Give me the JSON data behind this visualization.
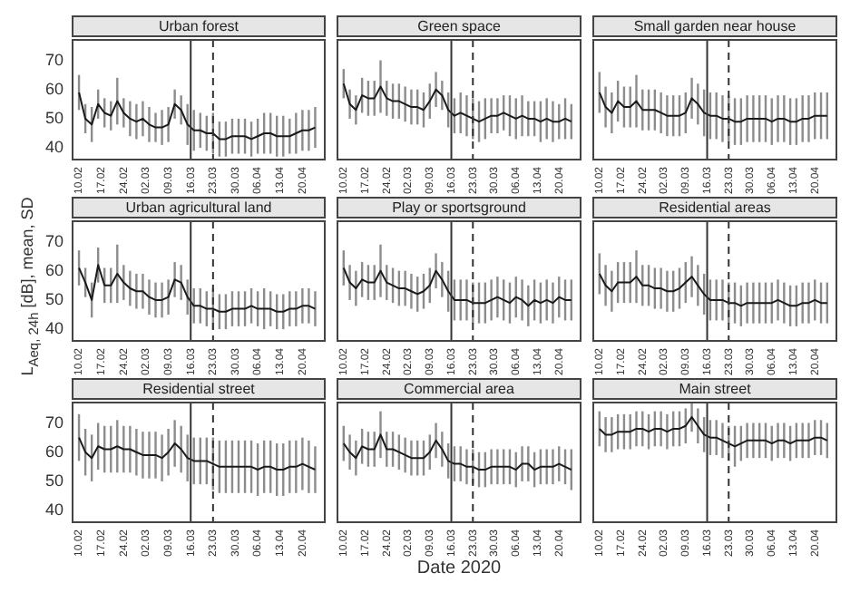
{
  "chart_data": [
    {
      "type": "line",
      "title": "Urban forest",
      "x": [
        "2020-02-10",
        "2020-02-12",
        "2020-02-14",
        "2020-02-16",
        "2020-02-18",
        "2020-02-20",
        "2020-02-22",
        "2020-02-24",
        "2020-02-26",
        "2020-02-28",
        "2020-03-01",
        "2020-03-03",
        "2020-03-05",
        "2020-03-07",
        "2020-03-09",
        "2020-03-11",
        "2020-03-13",
        "2020-03-15",
        "2020-03-17",
        "2020-03-19",
        "2020-03-21",
        "2020-03-23",
        "2020-03-25",
        "2020-03-27",
        "2020-03-29",
        "2020-03-31",
        "2020-04-02",
        "2020-04-04",
        "2020-04-06",
        "2020-04-08",
        "2020-04-10",
        "2020-04-12",
        "2020-04-14",
        "2020-04-16",
        "2020-04-18",
        "2020-04-20",
        "2020-04-22",
        "2020-04-24"
      ],
      "series": [
        {
          "color": "#1a1a1a",
          "values": [
            59,
            50,
            48,
            55,
            52,
            51,
            56,
            52,
            50,
            49,
            50,
            48,
            47,
            47,
            48,
            55,
            53,
            48,
            46,
            46,
            45,
            45,
            43,
            43,
            44,
            44,
            44,
            43,
            44,
            45,
            45,
            44,
            44,
            44,
            45,
            46,
            46,
            47
          ],
          "errors": [
            6,
            5,
            6,
            5,
            5,
            5,
            8,
            5,
            6,
            6,
            6,
            6,
            5,
            6,
            6,
            5,
            5,
            7,
            7,
            6,
            6,
            7,
            6,
            6,
            6,
            6,
            6,
            6,
            6,
            7,
            7,
            7,
            7,
            6,
            7,
            7,
            7,
            7
          ]
        }
      ],
      "xlim": [
        "2020-02-08",
        "2020-04-27"
      ],
      "xticks": [
        {
          "value": "2020-02-10",
          "label": "10.02"
        },
        {
          "value": "2020-02-17",
          "label": "17.02"
        },
        {
          "value": "2020-02-24",
          "label": "24.02"
        },
        {
          "value": "2020-03-02",
          "label": "02.03"
        },
        {
          "value": "2020-03-09",
          "label": "09.03"
        },
        {
          "value": "2020-03-16",
          "label": "16.03"
        },
        {
          "value": "2020-03-23",
          "label": "23.03"
        },
        {
          "value": "2020-03-30",
          "label": "30.03"
        },
        {
          "value": "2020-04-06",
          "label": "06.04"
        },
        {
          "value": "2020-04-13",
          "label": "13.04"
        },
        {
          "value": "2020-04-20",
          "label": "20.04"
        }
      ],
      "ylim": [
        36,
        77
      ],
      "yticks": [
        40,
        50,
        60,
        70
      ],
      "ref_lines": [
        {
          "axis": "x",
          "value": "2020-03-16",
          "color": "#333333",
          "line_style": "solid"
        },
        {
          "axis": "x",
          "value": "2020-03-23",
          "color": "#333333",
          "line_style": "dashed"
        }
      ],
      "grid": false,
      "legend": false,
      "marker": "none"
    },
    {
      "type": "line",
      "title": "Green space",
      "x": [
        "2020-02-10",
        "2020-02-12",
        "2020-02-14",
        "2020-02-16",
        "2020-02-18",
        "2020-02-20",
        "2020-02-22",
        "2020-02-24",
        "2020-02-26",
        "2020-02-28",
        "2020-03-01",
        "2020-03-03",
        "2020-03-05",
        "2020-03-07",
        "2020-03-09",
        "2020-03-11",
        "2020-03-13",
        "2020-03-15",
        "2020-03-17",
        "2020-03-19",
        "2020-03-21",
        "2020-03-23",
        "2020-03-25",
        "2020-03-27",
        "2020-03-29",
        "2020-03-31",
        "2020-04-02",
        "2020-04-04",
        "2020-04-06",
        "2020-04-08",
        "2020-04-10",
        "2020-04-12",
        "2020-04-14",
        "2020-04-16",
        "2020-04-18",
        "2020-04-20",
        "2020-04-22",
        "2020-04-24"
      ],
      "series": [
        {
          "color": "#1a1a1a",
          "values": [
            62,
            55,
            53,
            58,
            57,
            57,
            61,
            57,
            56,
            56,
            55,
            54,
            54,
            53,
            56,
            60,
            58,
            53,
            51,
            52,
            51,
            50,
            49,
            50,
            51,
            51,
            52,
            51,
            50,
            51,
            50,
            50,
            49,
            50,
            49,
            49,
            50,
            49
          ],
          "errors": [
            5,
            5,
            5,
            6,
            6,
            6,
            9,
            6,
            6,
            6,
            6,
            6,
            6,
            6,
            6,
            6,
            5,
            6,
            6,
            7,
            7,
            7,
            7,
            7,
            6,
            6,
            6,
            7,
            7,
            7,
            6,
            6,
            7,
            7,
            7,
            6,
            7,
            6
          ]
        }
      ],
      "xlim": [
        "2020-02-08",
        "2020-04-27"
      ],
      "xticks": [
        {
          "value": "2020-02-10",
          "label": "10.02"
        },
        {
          "value": "2020-02-17",
          "label": "17.02"
        },
        {
          "value": "2020-02-24",
          "label": "24.02"
        },
        {
          "value": "2020-03-02",
          "label": "02.03"
        },
        {
          "value": "2020-03-09",
          "label": "09.03"
        },
        {
          "value": "2020-03-16",
          "label": "16.03"
        },
        {
          "value": "2020-03-23",
          "label": "23.03"
        },
        {
          "value": "2020-03-30",
          "label": "30.03"
        },
        {
          "value": "2020-04-06",
          "label": "06.04"
        },
        {
          "value": "2020-04-13",
          "label": "13.04"
        },
        {
          "value": "2020-04-20",
          "label": "20.04"
        }
      ],
      "ylim": [
        36,
        77
      ],
      "yticks": [
        40,
        50,
        60,
        70
      ],
      "tick_labels": "x",
      "ref_lines": [
        {
          "axis": "x",
          "value": "2020-03-16",
          "color": "#333333",
          "line_style": "solid"
        },
        {
          "axis": "x",
          "value": "2020-03-23",
          "color": "#333333",
          "line_style": "dashed"
        }
      ],
      "grid": false,
      "legend": false,
      "marker": "none"
    },
    {
      "type": "line",
      "title": "Small garden near house",
      "x": [
        "2020-02-10",
        "2020-02-12",
        "2020-02-14",
        "2020-02-16",
        "2020-02-18",
        "2020-02-20",
        "2020-02-22",
        "2020-02-24",
        "2020-02-26",
        "2020-02-28",
        "2020-03-01",
        "2020-03-03",
        "2020-03-05",
        "2020-03-07",
        "2020-03-09",
        "2020-03-11",
        "2020-03-13",
        "2020-03-15",
        "2020-03-17",
        "2020-03-19",
        "2020-03-21",
        "2020-03-23",
        "2020-03-25",
        "2020-03-27",
        "2020-03-29",
        "2020-03-31",
        "2020-04-02",
        "2020-04-04",
        "2020-04-06",
        "2020-04-08",
        "2020-04-10",
        "2020-04-12",
        "2020-04-14",
        "2020-04-16",
        "2020-04-18",
        "2020-04-20",
        "2020-04-22",
        "2020-04-24"
      ],
      "series": [
        {
          "color": "#1a1a1a",
          "values": [
            59,
            54,
            52,
            56,
            54,
            54,
            56,
            53,
            53,
            53,
            52,
            51,
            51,
            51,
            52,
            57,
            55,
            52,
            51,
            51,
            50,
            50,
            49,
            49,
            50,
            50,
            50,
            50,
            49,
            50,
            50,
            49,
            49,
            50,
            50,
            51,
            51,
            51
          ],
          "errors": [
            7,
            7,
            7,
            7,
            7,
            7,
            9,
            7,
            7,
            7,
            7,
            7,
            7,
            7,
            7,
            7,
            7,
            8,
            8,
            8,
            8,
            8,
            8,
            8,
            8,
            8,
            8,
            8,
            8,
            8,
            8,
            8,
            8,
            8,
            8,
            8,
            8,
            8
          ]
        }
      ],
      "xlim": [
        "2020-02-08",
        "2020-04-27"
      ],
      "xticks": [
        {
          "value": "2020-02-10",
          "label": "10.02"
        },
        {
          "value": "2020-02-17",
          "label": "17.02"
        },
        {
          "value": "2020-02-24",
          "label": "24.02"
        },
        {
          "value": "2020-03-02",
          "label": "02.03"
        },
        {
          "value": "2020-03-09",
          "label": "09.03"
        },
        {
          "value": "2020-03-16",
          "label": "16.03"
        },
        {
          "value": "2020-03-23",
          "label": "23.03"
        },
        {
          "value": "2020-03-30",
          "label": "30.03"
        },
        {
          "value": "2020-04-06",
          "label": "06.04"
        },
        {
          "value": "2020-04-13",
          "label": "13.04"
        },
        {
          "value": "2020-04-20",
          "label": "20.04"
        }
      ],
      "ylim": [
        36,
        77
      ],
      "yticks": [
        40,
        50,
        60,
        70
      ],
      "tick_labels": "x",
      "ref_lines": [
        {
          "axis": "x",
          "value": "2020-03-16",
          "color": "#333333",
          "line_style": "solid"
        },
        {
          "axis": "x",
          "value": "2020-03-23",
          "color": "#333333",
          "line_style": "dashed"
        }
      ],
      "grid": false,
      "legend": false,
      "marker": "none"
    },
    {
      "type": "line",
      "title": "Urban agricultural land",
      "ylabel": "L$_{Aeq, 24h}$ [dB], mean, SD",
      "x": [
        "2020-02-10",
        "2020-02-12",
        "2020-02-14",
        "2020-02-16",
        "2020-02-18",
        "2020-02-20",
        "2020-02-22",
        "2020-02-24",
        "2020-02-26",
        "2020-02-28",
        "2020-03-01",
        "2020-03-03",
        "2020-03-05",
        "2020-03-07",
        "2020-03-09",
        "2020-03-11",
        "2020-03-13",
        "2020-03-15",
        "2020-03-17",
        "2020-03-19",
        "2020-03-21",
        "2020-03-23",
        "2020-03-25",
        "2020-03-27",
        "2020-03-29",
        "2020-03-31",
        "2020-04-02",
        "2020-04-04",
        "2020-04-06",
        "2020-04-08",
        "2020-04-10",
        "2020-04-12",
        "2020-04-14",
        "2020-04-16",
        "2020-04-18",
        "2020-04-20",
        "2020-04-22",
        "2020-04-24"
      ],
      "series": [
        {
          "color": "#1a1a1a",
          "values": [
            61,
            56,
            50,
            62,
            55,
            55,
            59,
            56,
            54,
            53,
            53,
            51,
            50,
            50,
            51,
            57,
            56,
            51,
            48,
            48,
            47,
            47,
            46,
            46,
            47,
            47,
            47,
            48,
            47,
            47,
            47,
            46,
            46,
            47,
            47,
            48,
            48,
            47
          ],
          "errors": [
            6,
            5,
            6,
            6,
            6,
            6,
            10,
            6,
            6,
            6,
            6,
            6,
            6,
            6,
            6,
            6,
            6,
            6,
            6,
            6,
            6,
            7,
            6,
            6,
            6,
            6,
            6,
            6,
            6,
            7,
            6,
            6,
            6,
            6,
            6,
            6,
            6,
            6
          ]
        }
      ],
      "xlim": [
        "2020-02-08",
        "2020-04-27"
      ],
      "xticks": [
        {
          "value": "2020-02-10",
          "label": "10.02"
        },
        {
          "value": "2020-02-17",
          "label": "17.02"
        },
        {
          "value": "2020-02-24",
          "label": "24.02"
        },
        {
          "value": "2020-03-02",
          "label": "02.03"
        },
        {
          "value": "2020-03-09",
          "label": "09.03"
        },
        {
          "value": "2020-03-16",
          "label": "16.03"
        },
        {
          "value": "2020-03-23",
          "label": "23.03"
        },
        {
          "value": "2020-03-30",
          "label": "30.03"
        },
        {
          "value": "2020-04-06",
          "label": "06.04"
        },
        {
          "value": "2020-04-13",
          "label": "13.04"
        },
        {
          "value": "2020-04-20",
          "label": "20.04"
        }
      ],
      "ylim": [
        36,
        77
      ],
      "yticks": [
        40,
        50,
        60,
        70
      ],
      "ref_lines": [
        {
          "axis": "x",
          "value": "2020-03-16",
          "color": "#333333",
          "line_style": "solid"
        },
        {
          "axis": "x",
          "value": "2020-03-23",
          "color": "#333333",
          "line_style": "dashed"
        }
      ],
      "grid": false,
      "legend": false,
      "marker": "none"
    },
    {
      "type": "line",
      "title": "Play or sportsground",
      "x": [
        "2020-02-10",
        "2020-02-12",
        "2020-02-14",
        "2020-02-16",
        "2020-02-18",
        "2020-02-20",
        "2020-02-22",
        "2020-02-24",
        "2020-02-26",
        "2020-02-28",
        "2020-03-01",
        "2020-03-03",
        "2020-03-05",
        "2020-03-07",
        "2020-03-09",
        "2020-03-11",
        "2020-03-13",
        "2020-03-15",
        "2020-03-17",
        "2020-03-19",
        "2020-03-21",
        "2020-03-23",
        "2020-03-25",
        "2020-03-27",
        "2020-03-29",
        "2020-03-31",
        "2020-04-02",
        "2020-04-04",
        "2020-04-06",
        "2020-04-08",
        "2020-04-10",
        "2020-04-12",
        "2020-04-14",
        "2020-04-16",
        "2020-04-18",
        "2020-04-20",
        "2020-04-22",
        "2020-04-24"
      ],
      "series": [
        {
          "color": "#1a1a1a",
          "values": [
            61,
            56,
            54,
            57,
            56,
            56,
            60,
            56,
            55,
            54,
            54,
            53,
            52,
            53,
            55,
            60,
            57,
            53,
            50,
            50,
            50,
            49,
            49,
            49,
            50,
            51,
            50,
            49,
            51,
            50,
            48,
            50,
            49,
            50,
            49,
            51,
            50,
            50
          ],
          "errors": [
            6,
            6,
            6,
            6,
            6,
            6,
            9,
            6,
            6,
            6,
            6,
            6,
            6,
            6,
            6,
            6,
            6,
            7,
            7,
            7,
            7,
            7,
            7,
            7,
            7,
            7,
            7,
            7,
            7,
            7,
            7,
            7,
            7,
            7,
            7,
            7,
            7,
            7
          ]
        }
      ],
      "xlim": [
        "2020-02-08",
        "2020-04-27"
      ],
      "xticks": [
        {
          "value": "2020-02-10",
          "label": "10.02"
        },
        {
          "value": "2020-02-17",
          "label": "17.02"
        },
        {
          "value": "2020-02-24",
          "label": "24.02"
        },
        {
          "value": "2020-03-02",
          "label": "02.03"
        },
        {
          "value": "2020-03-09",
          "label": "09.03"
        },
        {
          "value": "2020-03-16",
          "label": "16.03"
        },
        {
          "value": "2020-03-23",
          "label": "23.03"
        },
        {
          "value": "2020-03-30",
          "label": "30.03"
        },
        {
          "value": "2020-04-06",
          "label": "06.04"
        },
        {
          "value": "2020-04-13",
          "label": "13.04"
        },
        {
          "value": "2020-04-20",
          "label": "20.04"
        }
      ],
      "ylim": [
        36,
        77
      ],
      "yticks": [
        40,
        50,
        60,
        70
      ],
      "tick_labels": "x",
      "ref_lines": [
        {
          "axis": "x",
          "value": "2020-03-16",
          "color": "#333333",
          "line_style": "solid"
        },
        {
          "axis": "x",
          "value": "2020-03-23",
          "color": "#333333",
          "line_style": "dashed"
        }
      ],
      "grid": false,
      "legend": false,
      "marker": "none"
    },
    {
      "type": "line",
      "title": "Residential areas",
      "x": [
        "2020-02-10",
        "2020-02-12",
        "2020-02-14",
        "2020-02-16",
        "2020-02-18",
        "2020-02-20",
        "2020-02-22",
        "2020-02-24",
        "2020-02-26",
        "2020-02-28",
        "2020-03-01",
        "2020-03-03",
        "2020-03-05",
        "2020-03-07",
        "2020-03-09",
        "2020-03-11",
        "2020-03-13",
        "2020-03-15",
        "2020-03-17",
        "2020-03-19",
        "2020-03-21",
        "2020-03-23",
        "2020-03-25",
        "2020-03-27",
        "2020-03-29",
        "2020-03-31",
        "2020-04-02",
        "2020-04-04",
        "2020-04-06",
        "2020-04-08",
        "2020-04-10",
        "2020-04-12",
        "2020-04-14",
        "2020-04-16",
        "2020-04-18",
        "2020-04-20",
        "2020-04-22",
        "2020-04-24"
      ],
      "series": [
        {
          "color": "#1a1a1a",
          "values": [
            59,
            55,
            53,
            56,
            56,
            56,
            58,
            55,
            55,
            54,
            54,
            53,
            53,
            54,
            56,
            58,
            55,
            52,
            50,
            50,
            50,
            49,
            49,
            48,
            49,
            49,
            49,
            49,
            49,
            50,
            49,
            48,
            48,
            49,
            49,
            50,
            49,
            49
          ],
          "errors": [
            7,
            7,
            7,
            7,
            7,
            7,
            9,
            7,
            7,
            7,
            7,
            7,
            7,
            7,
            7,
            7,
            7,
            7,
            7,
            7,
            7,
            7,
            7,
            7,
            7,
            7,
            7,
            7,
            7,
            7,
            7,
            7,
            7,
            7,
            7,
            7,
            7,
            7
          ]
        }
      ],
      "xlim": [
        "2020-02-08",
        "2020-04-27"
      ],
      "xticks": [
        {
          "value": "2020-02-10",
          "label": "10.02"
        },
        {
          "value": "2020-02-17",
          "label": "17.02"
        },
        {
          "value": "2020-02-24",
          "label": "24.02"
        },
        {
          "value": "2020-03-02",
          "label": "02.03"
        },
        {
          "value": "2020-03-09",
          "label": "09.03"
        },
        {
          "value": "2020-03-16",
          "label": "16.03"
        },
        {
          "value": "2020-03-23",
          "label": "23.03"
        },
        {
          "value": "2020-03-30",
          "label": "30.03"
        },
        {
          "value": "2020-04-06",
          "label": "06.04"
        },
        {
          "value": "2020-04-13",
          "label": "13.04"
        },
        {
          "value": "2020-04-20",
          "label": "20.04"
        }
      ],
      "ylim": [
        36,
        77
      ],
      "yticks": [
        40,
        50,
        60,
        70
      ],
      "tick_labels": "x",
      "ref_lines": [
        {
          "axis": "x",
          "value": "2020-03-16",
          "color": "#333333",
          "line_style": "solid"
        },
        {
          "axis": "x",
          "value": "2020-03-23",
          "color": "#333333",
          "line_style": "dashed"
        }
      ],
      "grid": false,
      "legend": false,
      "marker": "none"
    },
    {
      "type": "line",
      "title": "Residential street",
      "x": [
        "2020-02-10",
        "2020-02-12",
        "2020-02-14",
        "2020-02-16",
        "2020-02-18",
        "2020-02-20",
        "2020-02-22",
        "2020-02-24",
        "2020-02-26",
        "2020-02-28",
        "2020-03-01",
        "2020-03-03",
        "2020-03-05",
        "2020-03-07",
        "2020-03-09",
        "2020-03-11",
        "2020-03-13",
        "2020-03-15",
        "2020-03-17",
        "2020-03-19",
        "2020-03-21",
        "2020-03-23",
        "2020-03-25",
        "2020-03-27",
        "2020-03-29",
        "2020-03-31",
        "2020-04-02",
        "2020-04-04",
        "2020-04-06",
        "2020-04-08",
        "2020-04-10",
        "2020-04-12",
        "2020-04-14",
        "2020-04-16",
        "2020-04-18",
        "2020-04-20",
        "2020-04-22",
        "2020-04-24"
      ],
      "series": [
        {
          "color": "#1a1a1a",
          "values": [
            65,
            60,
            58,
            62,
            61,
            61,
            62,
            61,
            61,
            60,
            59,
            59,
            59,
            58,
            60,
            63,
            61,
            58,
            57,
            57,
            57,
            56,
            55,
            55,
            55,
            55,
            55,
            55,
            54,
            55,
            55,
            54,
            54,
            55,
            55,
            56,
            55,
            54
          ],
          "errors": [
            8,
            8,
            8,
            8,
            8,
            8,
            9,
            8,
            8,
            8,
            8,
            8,
            8,
            8,
            8,
            8,
            8,
            8,
            8,
            8,
            8,
            9,
            9,
            9,
            9,
            9,
            9,
            9,
            9,
            9,
            9,
            9,
            9,
            9,
            9,
            9,
            9,
            8
          ]
        }
      ],
      "xlim": [
        "2020-02-08",
        "2020-04-27"
      ],
      "xticks": [
        {
          "value": "2020-02-10",
          "label": "10.02"
        },
        {
          "value": "2020-02-17",
          "label": "17.02"
        },
        {
          "value": "2020-02-24",
          "label": "24.02"
        },
        {
          "value": "2020-03-02",
          "label": "02.03"
        },
        {
          "value": "2020-03-09",
          "label": "09.03"
        },
        {
          "value": "2020-03-16",
          "label": "16.03"
        },
        {
          "value": "2020-03-23",
          "label": "23.03"
        },
        {
          "value": "2020-03-30",
          "label": "30.03"
        },
        {
          "value": "2020-04-06",
          "label": "06.04"
        },
        {
          "value": "2020-04-13",
          "label": "13.04"
        },
        {
          "value": "2020-04-20",
          "label": "20.04"
        }
      ],
      "ylim": [
        36,
        77
      ],
      "yticks": [
        40,
        50,
        60,
        70
      ],
      "ref_lines": [
        {
          "axis": "x",
          "value": "2020-03-16",
          "color": "#333333",
          "line_style": "solid"
        },
        {
          "axis": "x",
          "value": "2020-03-23",
          "color": "#333333",
          "line_style": "dashed"
        }
      ],
      "grid": false,
      "legend": false,
      "marker": "none"
    },
    {
      "type": "line",
      "title": "Commercial area",
      "xlabel": "Date 2020",
      "x": [
        "2020-02-10",
        "2020-02-12",
        "2020-02-14",
        "2020-02-16",
        "2020-02-18",
        "2020-02-20",
        "2020-02-22",
        "2020-02-24",
        "2020-02-26",
        "2020-02-28",
        "2020-03-01",
        "2020-03-03",
        "2020-03-05",
        "2020-03-07",
        "2020-03-09",
        "2020-03-11",
        "2020-03-13",
        "2020-03-15",
        "2020-03-17",
        "2020-03-19",
        "2020-03-21",
        "2020-03-23",
        "2020-03-25",
        "2020-03-27",
        "2020-03-29",
        "2020-03-31",
        "2020-04-02",
        "2020-04-04",
        "2020-04-06",
        "2020-04-08",
        "2020-04-10",
        "2020-04-12",
        "2020-04-14",
        "2020-04-16",
        "2020-04-18",
        "2020-04-20",
        "2020-04-22",
        "2020-04-24"
      ],
      "series": [
        {
          "color": "#1a1a1a",
          "values": [
            63,
            60,
            58,
            62,
            61,
            61,
            66,
            61,
            61,
            60,
            59,
            58,
            58,
            58,
            60,
            64,
            61,
            57,
            56,
            56,
            55,
            55,
            54,
            54,
            55,
            55,
            55,
            55,
            54,
            56,
            56,
            54,
            55,
            55,
            55,
            56,
            55,
            54
          ],
          "errors": [
            6,
            6,
            6,
            6,
            6,
            6,
            8,
            6,
            6,
            6,
            6,
            6,
            6,
            6,
            6,
            6,
            6,
            6,
            6,
            6,
            6,
            6,
            6,
            6,
            6,
            6,
            6,
            6,
            6,
            6,
            6,
            6,
            6,
            6,
            6,
            6,
            6,
            7
          ]
        }
      ],
      "xlim": [
        "2020-02-08",
        "2020-04-27"
      ],
      "xticks": [
        {
          "value": "2020-02-10",
          "label": "10.02"
        },
        {
          "value": "2020-02-17",
          "label": "17.02"
        },
        {
          "value": "2020-02-24",
          "label": "24.02"
        },
        {
          "value": "2020-03-02",
          "label": "02.03"
        },
        {
          "value": "2020-03-09",
          "label": "09.03"
        },
        {
          "value": "2020-03-16",
          "label": "16.03"
        },
        {
          "value": "2020-03-23",
          "label": "23.03"
        },
        {
          "value": "2020-03-30",
          "label": "30.03"
        },
        {
          "value": "2020-04-06",
          "label": "06.04"
        },
        {
          "value": "2020-04-13",
          "label": "13.04"
        },
        {
          "value": "2020-04-20",
          "label": "20.04"
        }
      ],
      "ylim": [
        36,
        77
      ],
      "yticks": [
        40,
        50,
        60,
        70
      ],
      "tick_labels": "x",
      "ref_lines": [
        {
          "axis": "x",
          "value": "2020-03-16",
          "color": "#333333",
          "line_style": "solid"
        },
        {
          "axis": "x",
          "value": "2020-03-23",
          "color": "#333333",
          "line_style": "dashed"
        }
      ],
      "grid": false,
      "legend": false,
      "marker": "none"
    },
    {
      "type": "line",
      "title": "Main street",
      "x": [
        "2020-02-10",
        "2020-02-12",
        "2020-02-14",
        "2020-02-16",
        "2020-02-18",
        "2020-02-20",
        "2020-02-22",
        "2020-02-24",
        "2020-02-26",
        "2020-02-28",
        "2020-03-01",
        "2020-03-03",
        "2020-03-05",
        "2020-03-07",
        "2020-03-09",
        "2020-03-11",
        "2020-03-13",
        "2020-03-15",
        "2020-03-17",
        "2020-03-19",
        "2020-03-21",
        "2020-03-23",
        "2020-03-25",
        "2020-03-27",
        "2020-03-29",
        "2020-03-31",
        "2020-04-02",
        "2020-04-04",
        "2020-04-06",
        "2020-04-08",
        "2020-04-10",
        "2020-04-12",
        "2020-04-14",
        "2020-04-16",
        "2020-04-18",
        "2020-04-20",
        "2020-04-22",
        "2020-04-24"
      ],
      "series": [
        {
          "color": "#1a1a1a",
          "values": [
            68,
            66,
            66,
            67,
            67,
            67,
            68,
            68,
            67,
            68,
            68,
            67,
            68,
            68,
            69,
            72,
            69,
            66,
            65,
            65,
            64,
            63,
            62,
            63,
            64,
            64,
            64,
            64,
            63,
            64,
            64,
            63,
            64,
            64,
            64,
            65,
            65,
            64
          ],
          "errors": [
            6,
            6,
            6,
            6,
            6,
            6,
            6,
            6,
            6,
            6,
            6,
            6,
            6,
            6,
            6,
            5,
            6,
            6,
            6,
            6,
            6,
            6,
            7,
            6,
            6,
            6,
            6,
            6,
            6,
            6,
            6,
            6,
            6,
            6,
            6,
            6,
            6,
            6
          ]
        }
      ],
      "xlim": [
        "2020-02-08",
        "2020-04-27"
      ],
      "xticks": [
        {
          "value": "2020-02-10",
          "label": "10.02"
        },
        {
          "value": "2020-02-17",
          "label": "17.02"
        },
        {
          "value": "2020-02-24",
          "label": "24.02"
        },
        {
          "value": "2020-03-02",
          "label": "02.03"
        },
        {
          "value": "2020-03-09",
          "label": "09.03"
        },
        {
          "value": "2020-03-16",
          "label": "16.03"
        },
        {
          "value": "2020-03-23",
          "label": "23.03"
        },
        {
          "value": "2020-03-30",
          "label": "30.03"
        },
        {
          "value": "2020-04-06",
          "label": "06.04"
        },
        {
          "value": "2020-04-13",
          "label": "13.04"
        },
        {
          "value": "2020-04-20",
          "label": "20.04"
        }
      ],
      "ylim": [
        36,
        77
      ],
      "yticks": [
        40,
        50,
        60,
        70
      ],
      "tick_labels": "x",
      "ref_lines": [
        {
          "axis": "x",
          "value": "2020-03-16",
          "color": "#333333",
          "line_style": "solid"
        },
        {
          "axis": "x",
          "value": "2020-03-23",
          "color": "#333333",
          "line_style": "dashed"
        }
      ],
      "grid": false,
      "legend": false,
      "marker": "none"
    }
  ]
}
